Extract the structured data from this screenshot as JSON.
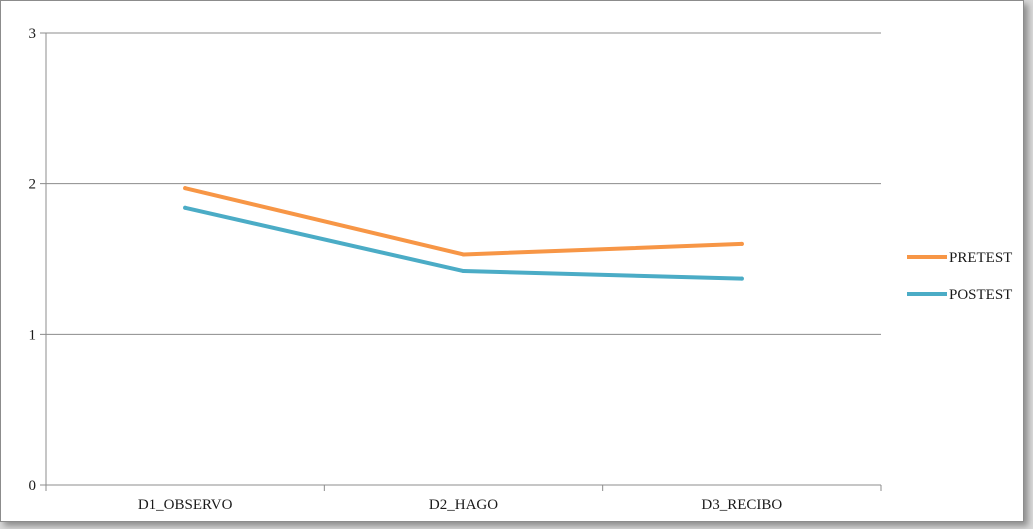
{
  "chart_data": {
    "type": "line",
    "categories": [
      "D1_OBSERVO",
      "D2_HAGO",
      "D3_RECIBO"
    ],
    "series": [
      {
        "name": "PRETEST",
        "values": [
          1.97,
          1.53,
          1.6
        ],
        "color": "#f79646"
      },
      {
        "name": "POSTEST",
        "values": [
          1.84,
          1.42,
          1.37
        ],
        "color": "#4bacc6"
      }
    ],
    "ylim": [
      0,
      3
    ],
    "yticks": [
      "0",
      "1",
      "2",
      "3"
    ],
    "grid": true,
    "legend_position": "right"
  }
}
